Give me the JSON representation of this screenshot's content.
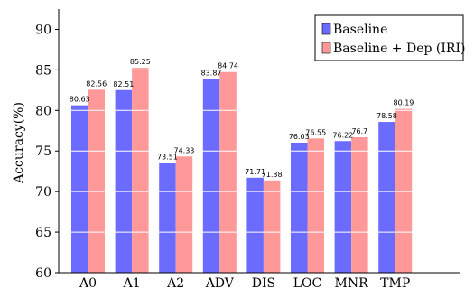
{
  "chart_data": {
    "type": "bar",
    "categories": [
      "A0",
      "A1",
      "A2",
      "ADV",
      "DIS",
      "LOC",
      "MNR",
      "TMP"
    ],
    "series": [
      {
        "name": "Baseline",
        "values": [
          80.63,
          82.51,
          73.51,
          83.87,
          71.71,
          76.03,
          76.22,
          78.58
        ],
        "labels": [
          "80.63",
          "82.51",
          "73.51",
          "83.87",
          "71.71",
          "76.03",
          "76.22",
          "78.58"
        ],
        "color": "#6b6bff"
      },
      {
        "name": "Baseline + Dep (IRI)",
        "values": [
          82.56,
          85.25,
          74.33,
          84.74,
          71.38,
          76.55,
          76.7,
          80.19
        ],
        "labels": [
          "82.56",
          "85.25",
          "74.33",
          "84.74",
          "71.38",
          "76.55",
          "76.7",
          "80.19"
        ],
        "color": "#ff9999"
      }
    ],
    "ylabel": "Accuracy(%)",
    "ylim": [
      60,
      92.5
    ],
    "yticks": [
      60,
      65,
      70,
      75,
      80,
      85,
      90
    ],
    "grid": "horizontal",
    "legend": "top-right"
  }
}
